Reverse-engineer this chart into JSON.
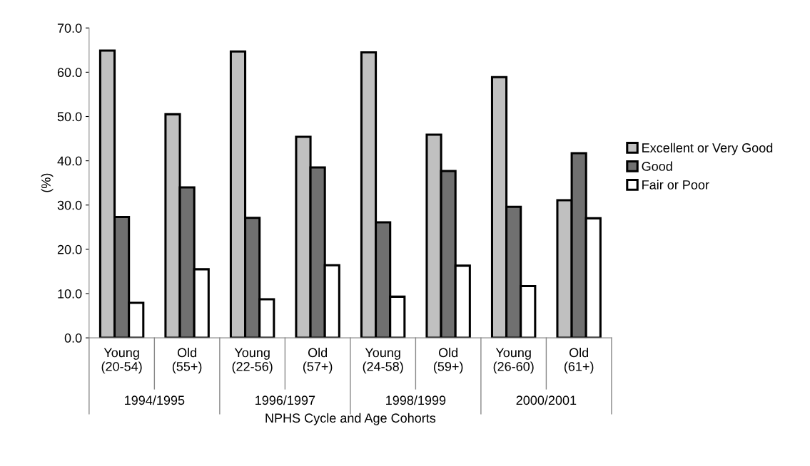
{
  "chart_data": {
    "type": "bar",
    "ylabel": "(%)",
    "xlabel": "NPHS Cycle and Age Cohorts",
    "categories": [
      "Young\n(20-54)",
      "Old\n(55+)",
      "Young\n(22-56)",
      "Old\n(57+)",
      "Young\n(24-58)",
      "Old\n(59+)",
      "Young\n(26-60)",
      "Old\n(61+)"
    ],
    "annotations": [
      "1994/1995",
      "1996/1997",
      "1998/1999",
      "2000/2001"
    ],
    "series": [
      {
        "name": "Excellent or Very Good",
        "color": "#c0c0c0",
        "values": [
          64.9,
          50.5,
          64.7,
          45.4,
          64.5,
          45.9,
          58.9,
          31.1
        ]
      },
      {
        "name": "Good",
        "color": "#707070",
        "values": [
          27.3,
          34.0,
          27.1,
          38.5,
          26.1,
          37.7,
          29.6,
          41.7
        ]
      },
      {
        "name": "Fair or Poor",
        "color": "#ffffff",
        "values": [
          7.9,
          15.5,
          8.7,
          16.4,
          9.3,
          16.3,
          11.7,
          27.0
        ]
      }
    ],
    "ylim": [
      0,
      70
    ],
    "yticks": [
      {
        "value": 0,
        "label": "0.0"
      },
      {
        "value": 10,
        "label": "10.0"
      },
      {
        "value": 20,
        "label": "20.0"
      },
      {
        "value": 30,
        "label": "30.0"
      },
      {
        "value": 40,
        "label": "40.0"
      },
      {
        "value": 50,
        "label": "50.0"
      },
      {
        "value": 60,
        "label": "60.0"
      },
      {
        "value": 70,
        "label": "70.0"
      }
    ],
    "grid": false,
    "legend": "right"
  }
}
